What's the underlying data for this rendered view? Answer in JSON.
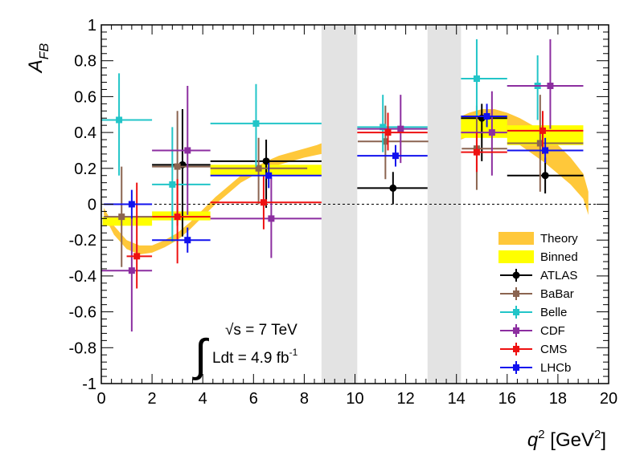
{
  "chart_data": {
    "type": "scatter",
    "title": "",
    "xlabel": "q",
    "xlabel_sup": "2",
    "xlabel_unit_open": " [GeV",
    "xlabel_unit_sup": "2",
    "xlabel_unit_close": "]",
    "ylabel": "A",
    "ylabel_sub": "FB",
    "xlim": [
      0,
      20
    ],
    "ylim": [
      -1,
      1
    ],
    "x_ticks": [
      "0",
      "2",
      "4",
      "6",
      "8",
      "10",
      "12",
      "14",
      "16",
      "18",
      "20"
    ],
    "y_ticks": [
      "-1",
      "-0.8",
      "-0.6",
      "-0.4",
      "-0.2",
      "0",
      "0.2",
      "0.4",
      "0.6",
      "0.8",
      "1"
    ],
    "grid": false,
    "zero_line": "dashed",
    "vetoed_regions": [
      [
        8.68,
        10.09
      ],
      [
        12.86,
        14.18
      ]
    ],
    "annotation": {
      "integral": "∫",
      "sqrt_s": "√s = 7 TeV",
      "lumi": "Ldt = 4.9 fb",
      "lumi_sup": "-1"
    },
    "colors": {
      "theory": "#ffc83a",
      "binned": "#ffff00",
      "ATLAS": "#000000",
      "BaBar": "#8b6450",
      "Belle": "#22c5c8",
      "CDF": "#8c2ea0",
      "CMS": "#ee1111",
      "LHCb": "#1111ee",
      "veto": "#e3e3e3"
    },
    "legend": {
      "position": "bottom-right",
      "entries": [
        {
          "label": "Theory",
          "key": "theory",
          "kind": "band"
        },
        {
          "label": "Binned",
          "key": "binned",
          "kind": "box"
        },
        {
          "label": "ATLAS",
          "key": "ATLAS",
          "kind": "marker"
        },
        {
          "label": "BaBar",
          "key": "BaBar",
          "kind": "marker"
        },
        {
          "label": "Belle",
          "key": "Belle",
          "kind": "marker"
        },
        {
          "label": "CDF",
          "key": "CDF",
          "kind": "marker"
        },
        {
          "label": "CMS",
          "key": "CMS",
          "kind": "marker"
        },
        {
          "label": "LHCb",
          "key": "LHCb",
          "kind": "marker"
        }
      ]
    },
    "theory_band": {
      "x": [
        0.1,
        0.5,
        1.0,
        1.5,
        2.0,
        2.5,
        3.0,
        3.5,
        4.0,
        4.5,
        5.0,
        5.5,
        6.0,
        6.5,
        7.0,
        7.5,
        8.0,
        8.5,
        8.68
      ],
      "low": [
        -0.06,
        -0.17,
        -0.25,
        -0.28,
        -0.27,
        -0.24,
        -0.2,
        -0.14,
        -0.07,
        0.0,
        0.06,
        0.12,
        0.16,
        0.19,
        0.22,
        0.24,
        0.26,
        0.275,
        0.28
      ],
      "high": [
        -0.02,
        -0.12,
        -0.2,
        -0.23,
        -0.23,
        -0.2,
        -0.16,
        -0.1,
        -0.03,
        0.04,
        0.1,
        0.16,
        0.2,
        0.24,
        0.27,
        0.29,
        0.31,
        0.33,
        0.34
      ],
      "x2": [
        14.18,
        14.5,
        15.0,
        15.5,
        16.0,
        16.5,
        17.0,
        17.5,
        18.0,
        18.5,
        19.0,
        19.2
      ],
      "low2": [
        0.36,
        0.38,
        0.4,
        0.39,
        0.37,
        0.33,
        0.28,
        0.23,
        0.17,
        0.11,
        0.03,
        -0.06
      ],
      "high2": [
        0.49,
        0.51,
        0.53,
        0.53,
        0.51,
        0.48,
        0.44,
        0.39,
        0.33,
        0.26,
        0.17,
        0.07
      ]
    },
    "binned": [
      {
        "x": [
          0.05,
          2.0
        ],
        "low": -0.12,
        "high": -0.07
      },
      {
        "x": [
          2.0,
          4.3
        ],
        "low": -0.09,
        "high": -0.04
      },
      {
        "x": [
          4.3,
          8.68
        ],
        "low": 0.16,
        "high": 0.22
      },
      {
        "x": [
          14.18,
          16.0
        ],
        "low": 0.37,
        "high": 0.49
      },
      {
        "x": [
          16.0,
          19.0
        ],
        "low": 0.33,
        "high": 0.44
      }
    ],
    "series": [
      {
        "name": "ATLAS",
        "points": [
          {
            "x": 3.2,
            "y": 0.22,
            "xlo": 2.0,
            "xhi": 4.3,
            "ylo": -0.18,
            "yhi": 0.53
          },
          {
            "x": 6.5,
            "y": 0.24,
            "xlo": 4.3,
            "xhi": 8.68,
            "ylo": -0.02,
            "yhi": 0.36
          },
          {
            "x": 11.5,
            "y": 0.09,
            "xlo": 10.09,
            "xhi": 12.86,
            "ylo": 0.0,
            "yhi": 0.18
          },
          {
            "x": 15.0,
            "y": 0.48,
            "xlo": 14.18,
            "xhi": 16.0,
            "ylo": 0.24,
            "yhi": 0.56
          },
          {
            "x": 17.5,
            "y": 0.16,
            "xlo": 16.0,
            "xhi": 19.0,
            "ylo": 0.06,
            "yhi": 0.26
          }
        ]
      },
      {
        "name": "BaBar",
        "points": [
          {
            "x": 0.8,
            "y": -0.07,
            "xlo": 0.1,
            "xhi": 2.0,
            "ylo": -0.35,
            "yhi": 0.21
          },
          {
            "x": 3.0,
            "y": 0.21,
            "xlo": 2.0,
            "xhi": 4.3,
            "ylo": -0.12,
            "yhi": 0.52
          },
          {
            "x": 6.2,
            "y": 0.2,
            "xlo": 4.3,
            "xhi": 8.12,
            "ylo": 0.0,
            "yhi": 0.37
          },
          {
            "x": 11.2,
            "y": 0.35,
            "xlo": 10.11,
            "xhi": 12.89,
            "ylo": 0.14,
            "yhi": 0.55
          },
          {
            "x": 14.8,
            "y": 0.31,
            "xlo": 14.21,
            "xhi": 16.0,
            "ylo": 0.08,
            "yhi": 0.55
          },
          {
            "x": 17.3,
            "y": 0.34,
            "xlo": 16.0,
            "xhi": 19.0,
            "ylo": 0.07,
            "yhi": 0.61
          }
        ]
      },
      {
        "name": "Belle",
        "points": [
          {
            "x": 0.7,
            "y": 0.47,
            "xlo": 0.0,
            "xhi": 2.0,
            "ylo": 0.16,
            "yhi": 0.73
          },
          {
            "x": 2.8,
            "y": 0.11,
            "xlo": 2.0,
            "xhi": 4.3,
            "ylo": -0.21,
            "yhi": 0.43
          },
          {
            "x": 6.1,
            "y": 0.45,
            "xlo": 4.3,
            "xhi": 8.68,
            "ylo": 0.21,
            "yhi": 0.67
          },
          {
            "x": 11.1,
            "y": 0.43,
            "xlo": 10.09,
            "xhi": 12.86,
            "ylo": 0.29,
            "yhi": 0.61
          },
          {
            "x": 14.8,
            "y": 0.7,
            "xlo": 14.18,
            "xhi": 16.0,
            "ylo": 0.49,
            "yhi": 0.92
          },
          {
            "x": 17.2,
            "y": 0.66,
            "xlo": 16.0,
            "xhi": 19.0,
            "ylo": 0.47,
            "yhi": 0.83
          }
        ]
      },
      {
        "name": "CDF",
        "points": [
          {
            "x": 1.2,
            "y": -0.37,
            "xlo": 0.0,
            "xhi": 2.0,
            "ylo": -0.71,
            "yhi": -0.07
          },
          {
            "x": 3.4,
            "y": 0.3,
            "xlo": 2.0,
            "xhi": 4.3,
            "ylo": -0.06,
            "yhi": 0.66
          },
          {
            "x": 6.7,
            "y": -0.08,
            "xlo": 4.3,
            "xhi": 8.68,
            "ylo": -0.3,
            "yhi": 0.15
          },
          {
            "x": 11.8,
            "y": 0.42,
            "xlo": 10.09,
            "xhi": 12.86,
            "ylo": 0.23,
            "yhi": 0.61
          },
          {
            "x": 15.4,
            "y": 0.4,
            "xlo": 14.18,
            "xhi": 16.0,
            "ylo": 0.16,
            "yhi": 0.63
          },
          {
            "x": 17.7,
            "y": 0.66,
            "xlo": 16.0,
            "xhi": 19.0,
            "ylo": 0.42,
            "yhi": 0.92
          }
        ]
      },
      {
        "name": "CMS",
        "points": [
          {
            "x": 1.4,
            "y": -0.29,
            "xlo": 1.0,
            "xhi": 2.0,
            "ylo": -0.47,
            "yhi": 0.12
          },
          {
            "x": 3.0,
            "y": -0.07,
            "xlo": 2.0,
            "xhi": 4.3,
            "ylo": -0.33,
            "yhi": 0.14
          },
          {
            "x": 6.4,
            "y": 0.01,
            "xlo": 4.3,
            "xhi": 8.68,
            "ylo": -0.14,
            "yhi": 0.16
          },
          {
            "x": 11.3,
            "y": 0.4,
            "xlo": 10.09,
            "xhi": 12.86,
            "ylo": 0.3,
            "yhi": 0.51
          },
          {
            "x": 14.8,
            "y": 0.29,
            "xlo": 14.18,
            "xhi": 16.0,
            "ylo": 0.18,
            "yhi": 0.4
          },
          {
            "x": 17.4,
            "y": 0.41,
            "xlo": 16.0,
            "xhi": 19.0,
            "ylo": 0.28,
            "yhi": 0.52
          }
        ]
      },
      {
        "name": "LHCb",
        "points": [
          {
            "x": 1.2,
            "y": 0.0,
            "xlo": 0.1,
            "xhi": 2.0,
            "ylo": -0.08,
            "yhi": 0.08
          },
          {
            "x": 3.4,
            "y": -0.2,
            "xlo": 2.0,
            "xhi": 4.3,
            "ylo": -0.27,
            "yhi": -0.13
          },
          {
            "x": 6.6,
            "y": 0.16,
            "xlo": 4.3,
            "xhi": 8.68,
            "ylo": 0.09,
            "yhi": 0.23
          },
          {
            "x": 11.6,
            "y": 0.27,
            "xlo": 10.09,
            "xhi": 12.86,
            "ylo": 0.21,
            "yhi": 0.33
          },
          {
            "x": 15.2,
            "y": 0.49,
            "xlo": 14.18,
            "xhi": 16.0,
            "ylo": 0.43,
            "yhi": 0.56
          },
          {
            "x": 17.5,
            "y": 0.3,
            "xlo": 16.0,
            "xhi": 19.0,
            "ylo": 0.23,
            "yhi": 0.37
          }
        ]
      }
    ]
  }
}
